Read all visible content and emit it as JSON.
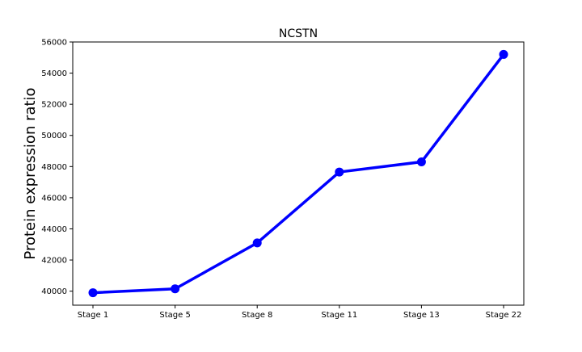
{
  "chart_data": {
    "type": "line",
    "title": "NCSTN",
    "xlabel": "",
    "ylabel": "Protein expression ratio",
    "categories": [
      "Stage 1",
      "Stage 5",
      "Stage 8",
      "Stage 11",
      "Stage 13",
      "Stage 22"
    ],
    "yticks": [
      "40000",
      "42000",
      "44000",
      "46000",
      "48000",
      "50000",
      "52000",
      "54000",
      "56000"
    ],
    "ylim": [
      39100,
      56000
    ],
    "grid": false,
    "legend": "none",
    "series": [
      {
        "name": "",
        "color": "#0000ff",
        "marker": "circle",
        "values": [
          39900,
          40150,
          43100,
          47650,
          48300,
          55200
        ]
      }
    ]
  }
}
